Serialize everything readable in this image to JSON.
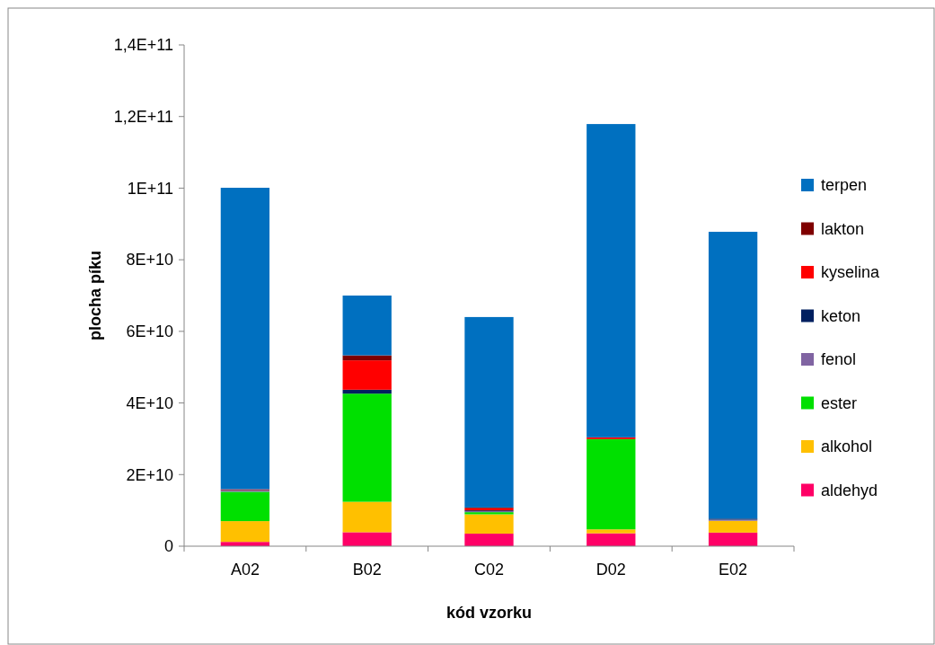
{
  "chart_data": {
    "type": "bar",
    "stacked": true,
    "xlabel": "kód vzorku",
    "ylabel": "plocha píku",
    "categories": [
      "A02",
      "B02",
      "C02",
      "D02",
      "E02"
    ],
    "series": [
      {
        "name": "aldehyd",
        "color": "#ff0066",
        "values": [
          1200000000.0,
          3900000000.0,
          3500000000.0,
          3600000000.0,
          3800000000.0
        ]
      },
      {
        "name": "alkohol",
        "color": "#ffc000",
        "values": [
          5800000000.0,
          8500000000.0,
          5400000000.0,
          1100000000.0,
          3300000000.0
        ]
      },
      {
        "name": "ester",
        "color": "#00e000",
        "values": [
          8200000000.0,
          30200000000.0,
          600000000.0,
          25200000000.0,
          0
        ]
      },
      {
        "name": "fenol",
        "color": "#8064a2",
        "values": [
          300000000.0,
          0,
          200000000.0,
          0,
          300000000.0
        ]
      },
      {
        "name": "keton",
        "color": "#002060",
        "values": [
          200000000.0,
          1100000000.0,
          300000000.0,
          0,
          300000000.0
        ]
      },
      {
        "name": "kyselina",
        "color": "#ff0000",
        "values": [
          200000000.0,
          8200000000.0,
          600000000.0,
          500000000.0,
          0
        ]
      },
      {
        "name": "lakton",
        "color": "#7f0000",
        "values": [
          0,
          1400000000.0,
          200000000.0,
          0,
          0
        ]
      },
      {
        "name": "terpen",
        "color": "#0070c0",
        "values": [
          84200000000.0,
          16700000000.0,
          53200000000.0,
          87500000000.0,
          80100000000.0
        ]
      }
    ],
    "ylim": [
      0,
      140000000000.0
    ],
    "yticks": [
      0,
      {
        "value": 20000000000.0,
        "label": "2E+10"
      },
      {
        "value": 40000000000.0,
        "label": "4E+10"
      },
      {
        "value": 60000000000.0,
        "label": "6E+10"
      },
      {
        "value": 80000000000.0,
        "label": "8E+10"
      },
      {
        "value": 100000000000.0,
        "label": "1E+11"
      },
      {
        "value": 120000000000.0,
        "label": "1,2E+11"
      },
      {
        "value": 140000000000.0,
        "label": "1,4E+11"
      }
    ],
    "grid": false,
    "legend": "right"
  }
}
